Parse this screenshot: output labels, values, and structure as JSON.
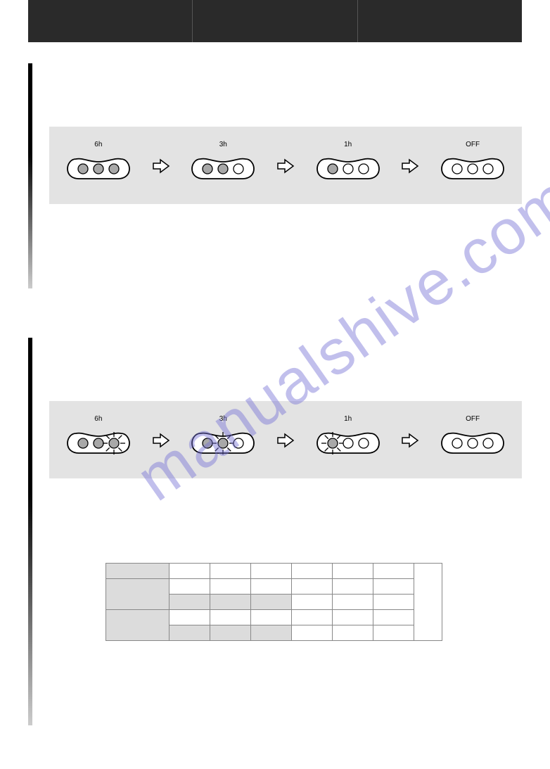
{
  "watermark": "manualshive.com",
  "diagram1": {
    "labels": [
      "6h",
      "3h",
      "1h",
      "OFF"
    ],
    "states": [
      [
        true,
        true,
        true
      ],
      [
        true,
        true,
        false
      ],
      [
        true,
        false,
        false
      ],
      [
        false,
        false,
        false
      ]
    ]
  },
  "diagram2": {
    "labels": [
      "6h",
      "3h",
      "1h",
      "OFF"
    ],
    "states": [
      {
        "fill": [
          true,
          true,
          true
        ],
        "flash": 2
      },
      {
        "fill": [
          true,
          true,
          false
        ],
        "flash": 1
      },
      {
        "fill": [
          true,
          false,
          false
        ],
        "flash": 0
      },
      {
        "fill": [
          false,
          false,
          false
        ],
        "flash": -1
      }
    ]
  },
  "colors": {
    "header_bg": "#2a2a2a",
    "diagram_bg": "#e3e3e3",
    "pod_stroke": "#000000",
    "dot_fill": "#a8a8a8",
    "dot_empty": "#ffffff",
    "table_shade": "#dcdcdc"
  }
}
